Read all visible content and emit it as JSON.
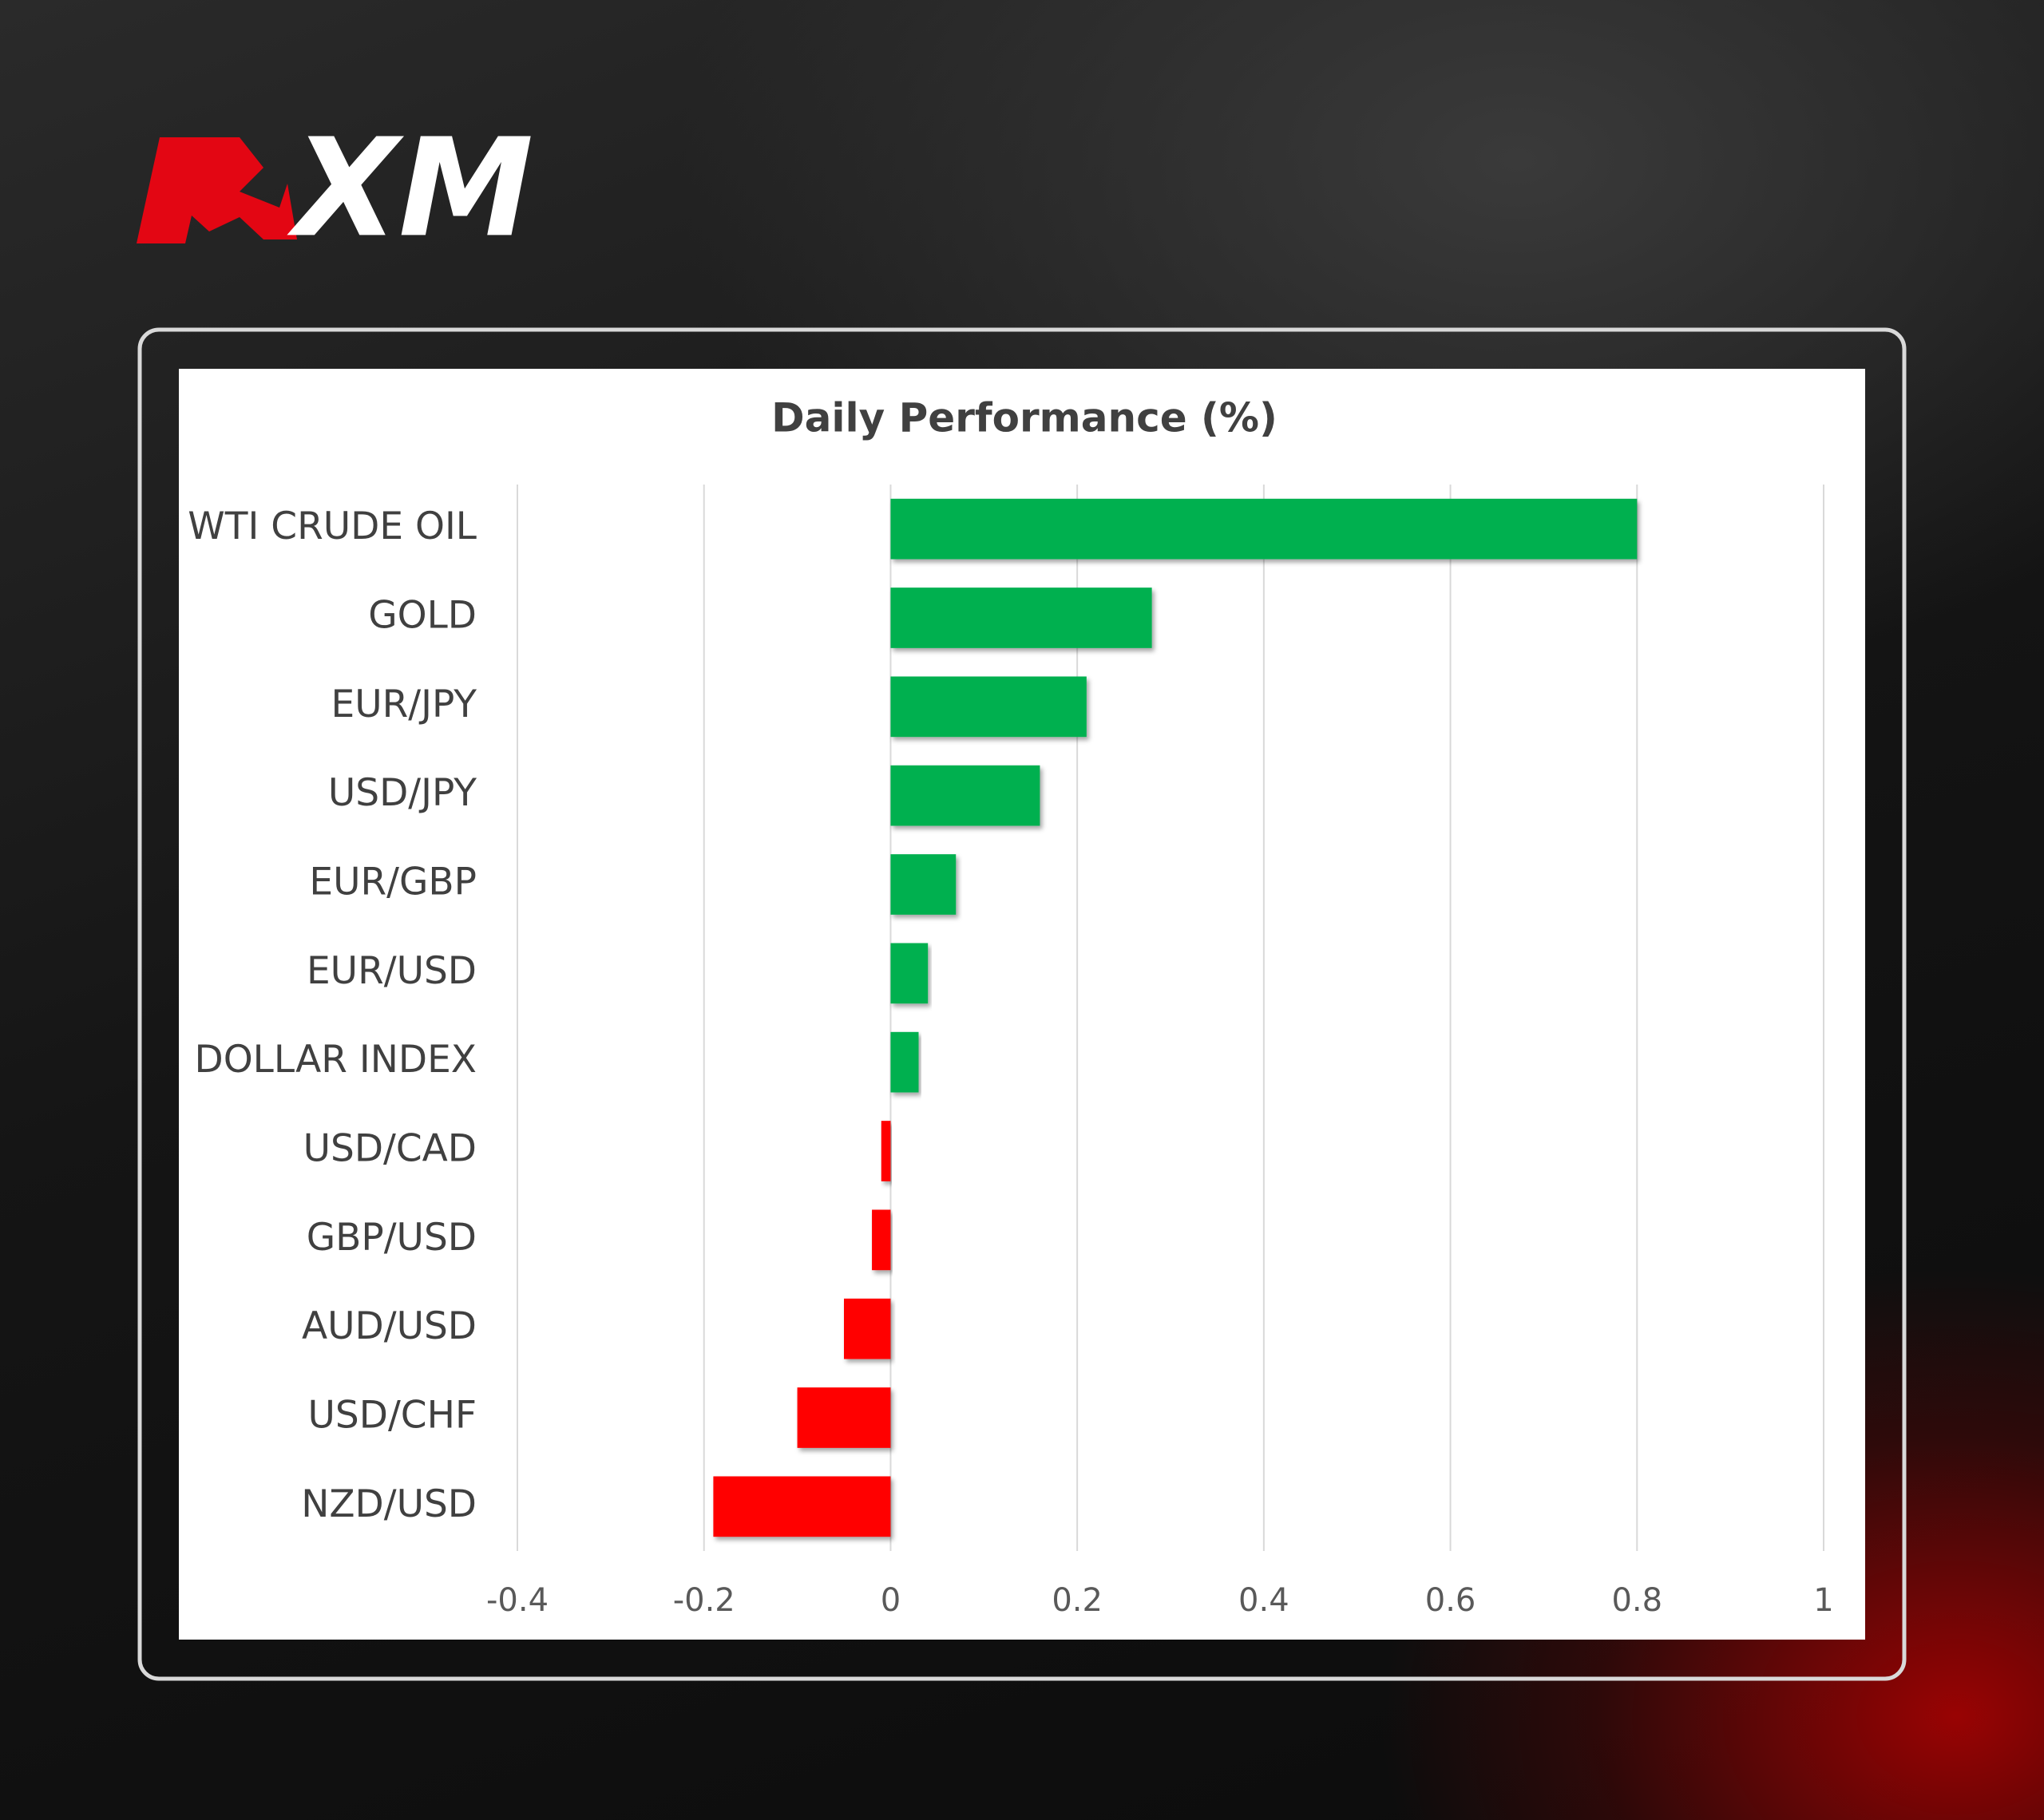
{
  "logo": "XM",
  "chart_data": {
    "type": "hbar",
    "title": "Daily Performance (%)",
    "categories": [
      "WTI CRUDE OIL",
      "GOLD",
      "EUR/JPY",
      "USD/JPY",
      "EUR/GBP",
      "EUR/USD",
      "DOLLAR INDEX",
      "USD/CAD",
      "GBP/USD",
      "AUD/USD",
      "USD/CHF",
      "NZD/USD"
    ],
    "values": [
      0.8,
      0.28,
      0.21,
      0.16,
      0.07,
      0.04,
      0.03,
      -0.01,
      -0.02,
      -0.05,
      -0.1,
      -0.19
    ],
    "positive_color": "#00b050",
    "negative_color": "#ff0000",
    "xlim": [
      -0.4,
      1
    ],
    "xticks": [
      -0.4,
      -0.2,
      0,
      0.2,
      0.4,
      0.6,
      0.8,
      1
    ],
    "grid": true
  }
}
